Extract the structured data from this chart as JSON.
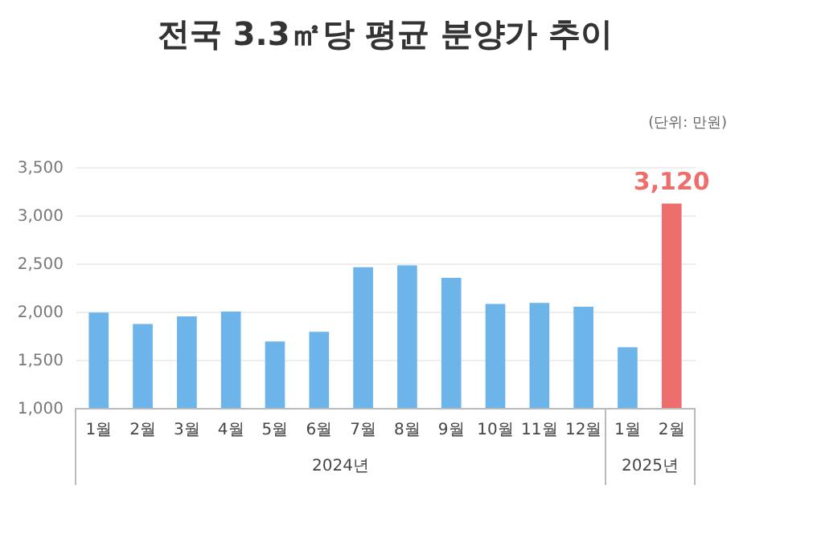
{
  "chart_data": {
    "type": "bar",
    "title": "전국 3.3㎡당 평균 분양가 추이",
    "subtitle": "(단위: 만원)",
    "categories": [
      "1월",
      "2월",
      "3월",
      "4월",
      "5월",
      "6월",
      "7월",
      "8월",
      "9월",
      "10월",
      "11월",
      "12월",
      "1월",
      "2월"
    ],
    "values": [
      1990,
      1870,
      1950,
      2000,
      1690,
      1790,
      2460,
      2480,
      2350,
      2080,
      2090,
      2050,
      1630,
      3120
    ],
    "colors": [
      "#6cb4ea",
      "#6cb4ea",
      "#6cb4ea",
      "#6cb4ea",
      "#6cb4ea",
      "#6cb4ea",
      "#6cb4ea",
      "#6cb4ea",
      "#6cb4ea",
      "#6cb4ea",
      "#6cb4ea",
      "#6cb4ea",
      "#6cb4ea",
      "#ee6e6e"
    ],
    "value_labels": [
      null,
      null,
      null,
      null,
      null,
      null,
      null,
      null,
      null,
      null,
      null,
      null,
      null,
      "3,120"
    ],
    "annotations": [
      "2024년",
      "2025년"
    ],
    "ylim": [
      1000,
      3500
    ],
    "yticks": [
      {
        "value": 1000,
        "label": "1,000"
      },
      {
        "value": 1500,
        "label": "1,500"
      },
      {
        "value": 2000,
        "label": "2,000"
      },
      {
        "value": 2500,
        "label": "2,500"
      },
      {
        "value": 3000,
        "label": "3,000"
      },
      {
        "value": 3500,
        "label": "3,500"
      }
    ],
    "grid": "y"
  }
}
